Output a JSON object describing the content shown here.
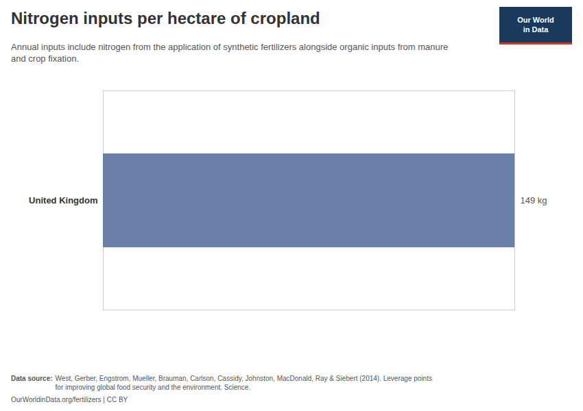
{
  "chart_data": {
    "type": "bar",
    "orientation": "horizontal",
    "title": "Nitrogen inputs per hectare of cropland",
    "subtitle": "Annual inputs include nitrogen from the application of synthetic fertilizers alongside organic inputs from manure\nand crop fixation.",
    "categories": [
      "United Kingdom"
    ],
    "values": [
      149
    ],
    "value_labels": [
      "149 kg"
    ],
    "color": "#6b80a8",
    "xlim": [
      0,
      149
    ],
    "xticks": [],
    "tick_labels": "y",
    "data_labels": true,
    "grid": false,
    "annotations": [
      "Data source:",
      "West, Gerber, Engstrom, Mueller, Brauman, Carlson, Cassidy, Johnston, MacDonald, Ray & Siebert (2014). Leverage points\nfor improving global food security and the environment. Science.",
      "OurWorldinData.org/fertilizers | CC BY",
      "Our World",
      "in Data"
    ]
  }
}
